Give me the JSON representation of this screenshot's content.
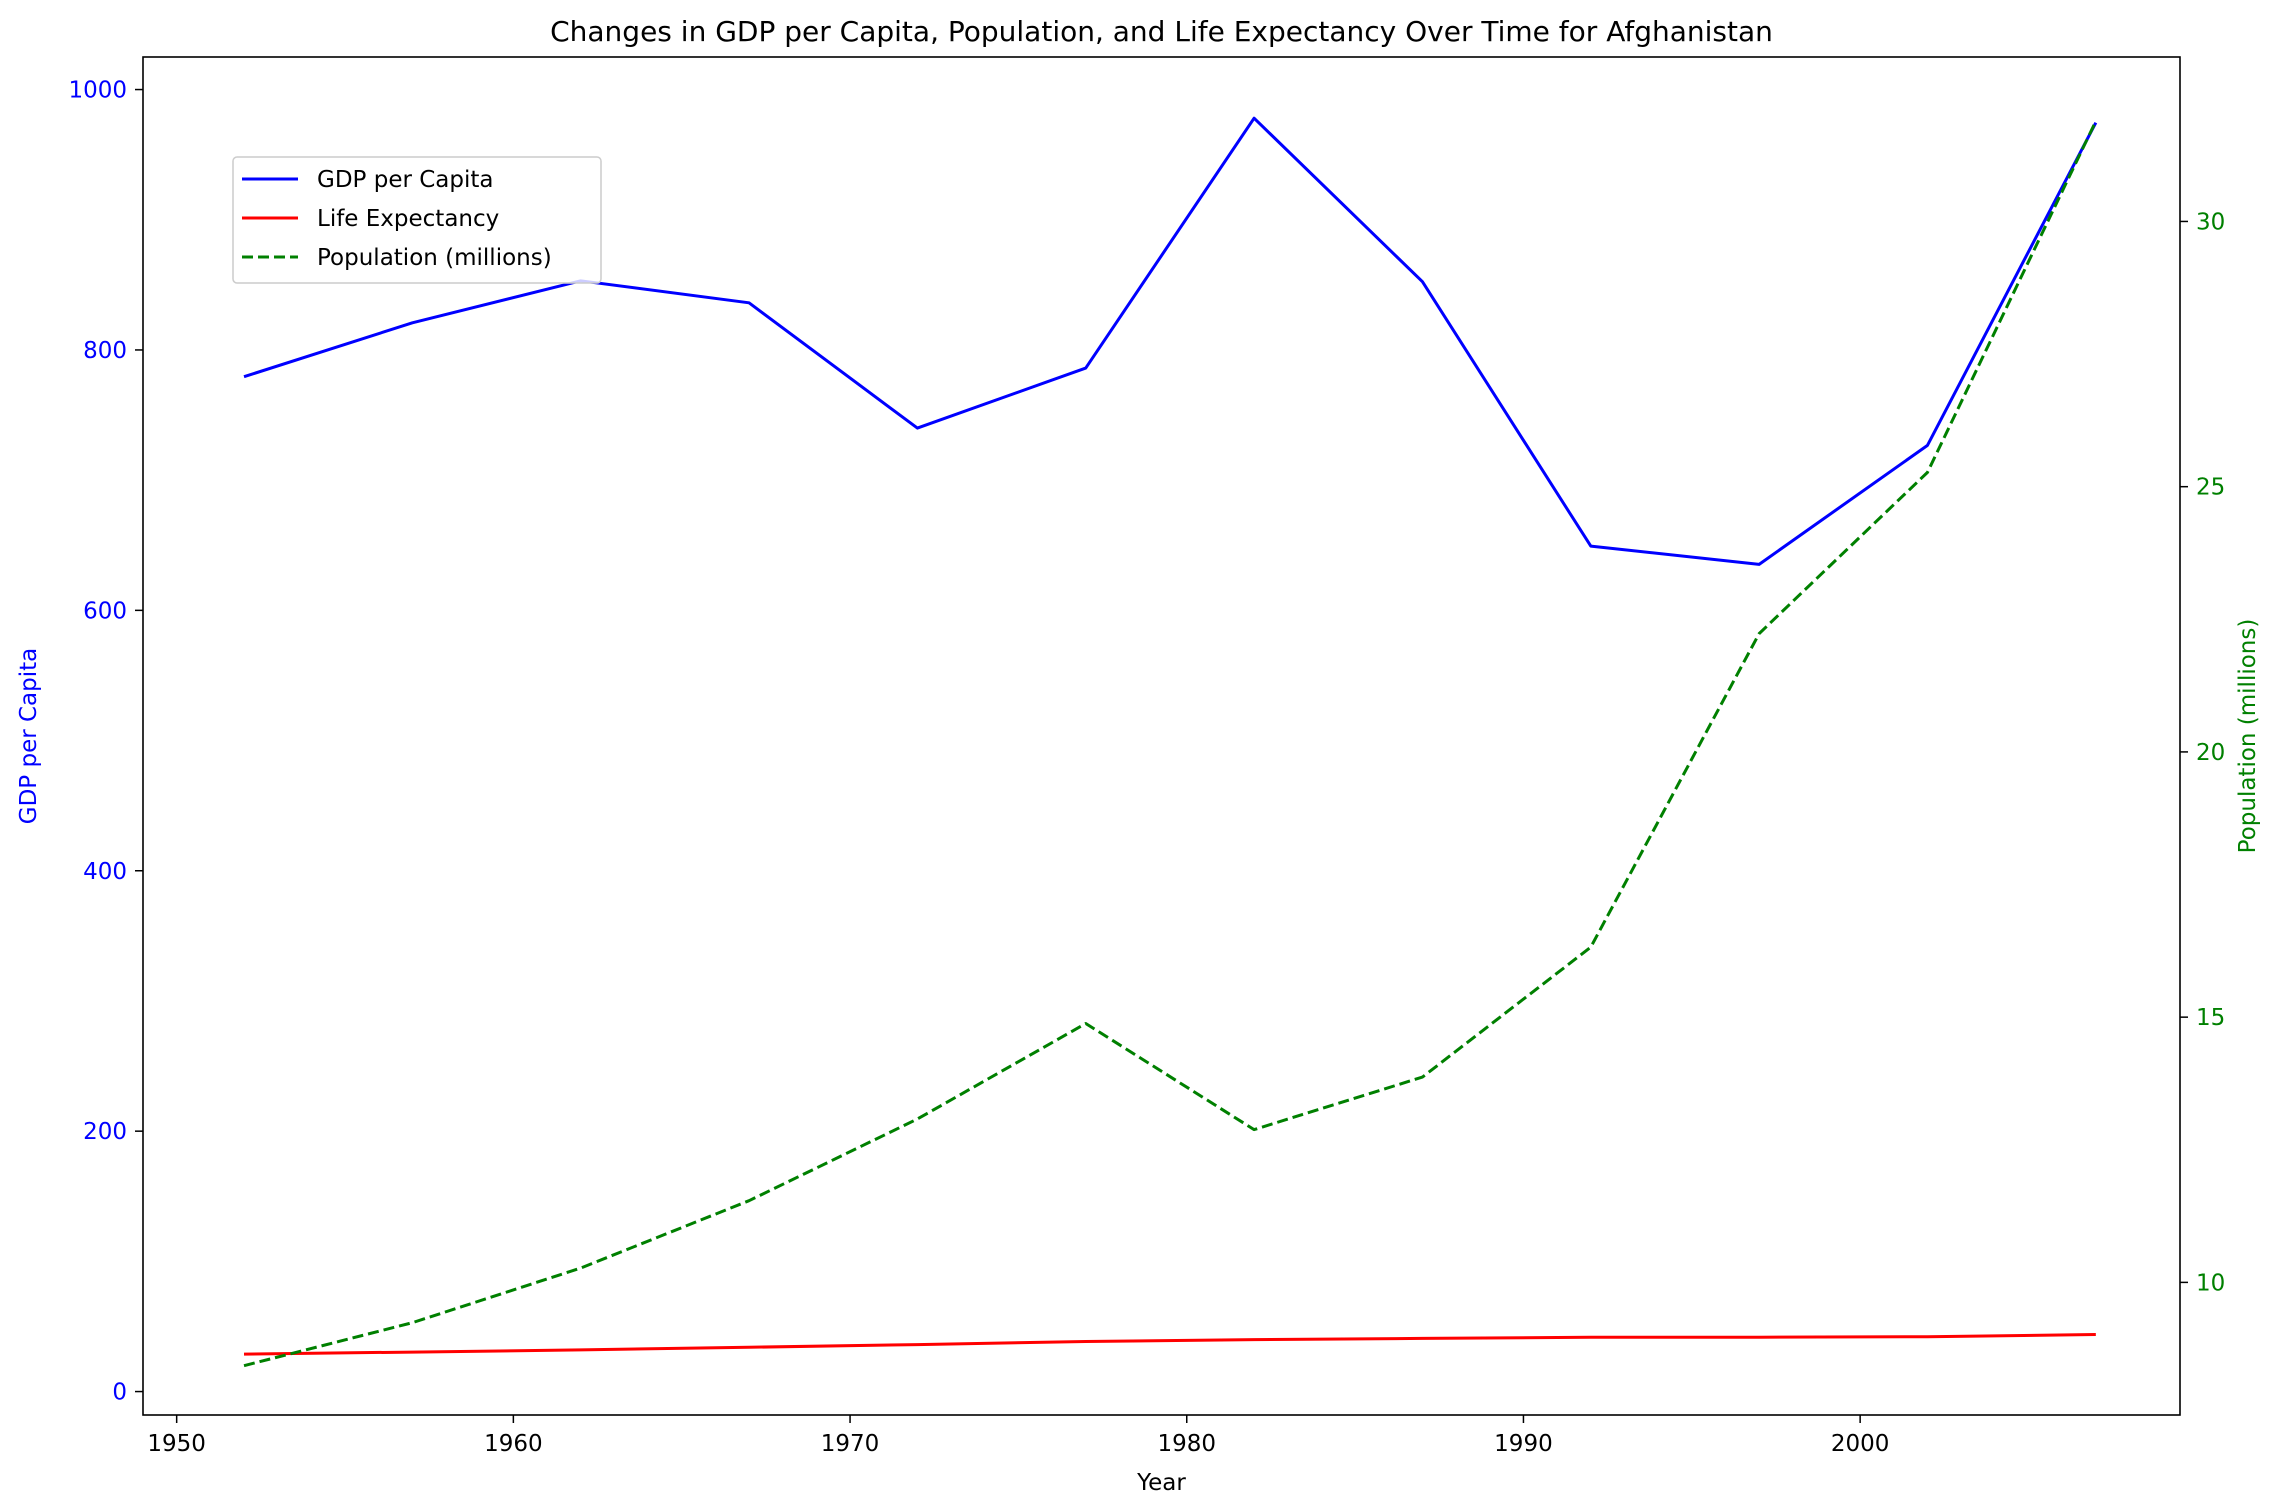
{
  "chart_data": {
    "type": "line",
    "title": "Changes in GDP per Capita, Population, and Life Expectancy Over Time for Afghanistan",
    "xlabel": "Year",
    "ylabel_left": "GDP per Capita",
    "ylabel_right": "Population (millions)",
    "xlim": [
      1949,
      2009.5
    ],
    "ylim_left": [
      -18,
      1025
    ],
    "ylim_right": [
      7.5,
      33.1
    ],
    "x_ticks": [
      1950,
      1960,
      1970,
      1980,
      1990,
      2000
    ],
    "y_ticks_left": [
      0,
      200,
      400,
      600,
      800,
      1000
    ],
    "y_ticks_right": [
      10,
      15,
      20,
      25,
      30
    ],
    "grid": false,
    "legend_position": "upper-left",
    "x": [
      1952,
      1957,
      1962,
      1967,
      1972,
      1977,
      1982,
      1987,
      1992,
      1997,
      2002,
      2007
    ],
    "series": [
      {
        "name": "GDP per Capita",
        "axis": "left",
        "color": "#0000ff",
        "style": "solid",
        "values": [
          779.45,
          820.85,
          853.1,
          836.2,
          739.98,
          786.11,
          978.01,
          852.4,
          649.34,
          635.34,
          726.73,
          974.58
        ]
      },
      {
        "name": "Life Expectancy",
        "axis": "left",
        "color": "#ff0000",
        "style": "solid",
        "values": [
          28.8,
          30.33,
          32.0,
          34.02,
          36.09,
          38.44,
          39.85,
          40.82,
          41.67,
          41.76,
          42.13,
          43.83
        ]
      },
      {
        "name": "Population (millions)",
        "axis": "right",
        "color": "#008000",
        "style": "dashed",
        "values": [
          8.43,
          9.24,
          10.27,
          11.54,
          13.08,
          14.88,
          12.88,
          13.87,
          16.32,
          22.23,
          25.27,
          31.89
        ]
      }
    ],
    "colors": {
      "left_axis": "#0000ff",
      "right_axis": "#008000",
      "bottom_axis": "#000000"
    }
  }
}
